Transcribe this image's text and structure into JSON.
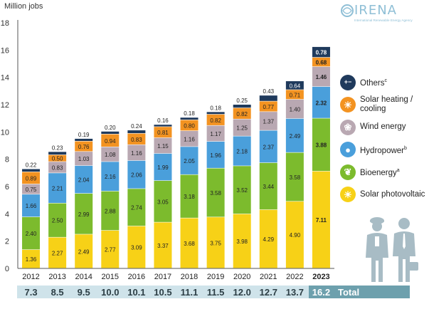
{
  "logo": {
    "word": "IRENA",
    "sub": "International Renewable Energy Agency"
  },
  "colors": {
    "solar_pv": "#f7d117",
    "bioenergy": "#7cbb2d",
    "hydropower": "#4a9fdb",
    "wind": "#b9a8b2",
    "solar_heating": "#f39321",
    "others": "#1f3a5c",
    "totals_bg": "#cfe3ea",
    "totals_hl": "#6da0ad"
  },
  "chart_data": {
    "type": "bar",
    "stacked": true,
    "ylabel": "Million jobs",
    "ylim": [
      0,
      18
    ],
    "yticks": [
      "0",
      "2",
      "4",
      "6",
      "8",
      "10",
      "12",
      "14",
      "16",
      "18"
    ],
    "grid": false,
    "legend_position": "right",
    "categories": [
      "2012",
      "2013",
      "2014",
      "2015",
      "2016",
      "2017",
      "2018",
      "2019",
      "2020",
      "2021",
      "2022",
      "2023"
    ],
    "series": [
      {
        "key": "solar_pv",
        "name": "Solar photovoltaic",
        "values": [
          1.36,
          2.27,
          2.49,
          2.77,
          3.09,
          3.37,
          3.68,
          3.75,
          3.98,
          4.29,
          4.9,
          7.11
        ],
        "labels": [
          "1.36",
          "2.27",
          "2.49",
          "2.77",
          "3.09",
          "3.37",
          "3.68",
          "3.75",
          "3.98",
          "4.29",
          "4.90",
          "7.11"
        ]
      },
      {
        "key": "bioenergy",
        "name": "Bioenergy",
        "sup": "a",
        "values": [
          2.4,
          2.5,
          2.99,
          2.88,
          2.74,
          3.05,
          3.18,
          3.58,
          3.52,
          3.44,
          3.58,
          3.88
        ],
        "labels": [
          "2.40",
          "2.50",
          "2.99",
          "2.88",
          "2.74",
          "3.05",
          "3.18",
          "3.58",
          "3.52",
          "3.44",
          "3.58",
          "3.88"
        ]
      },
      {
        "key": "hydropower",
        "name": "Hydropower",
        "sup": "b",
        "values": [
          1.66,
          2.21,
          2.04,
          2.16,
          2.06,
          1.99,
          2.05,
          1.96,
          2.18,
          2.37,
          2.49,
          2.32
        ],
        "labels": [
          "1.66",
          "2.21",
          "2.04",
          "2.16",
          "2.06",
          "1.99",
          "2.05",
          "1.96",
          "2.18",
          "2.37",
          "2.49",
          "2.32"
        ]
      },
      {
        "key": "wind",
        "name": "Wind energy",
        "values": [
          0.75,
          0.83,
          1.03,
          1.08,
          1.16,
          1.15,
          1.16,
          1.17,
          1.25,
          1.37,
          1.4,
          1.46
        ],
        "labels": [
          "0.75",
          "0.83",
          "1.03",
          "1.08",
          "1.16",
          "1.15",
          "1.16",
          "1.17",
          "1.25",
          "1.37",
          "1.40",
          "1.46"
        ]
      },
      {
        "key": "solar_heating",
        "name": "Solar heating / cooling",
        "values": [
          0.89,
          0.5,
          0.76,
          0.94,
          0.83,
          0.81,
          0.8,
          0.82,
          0.82,
          0.77,
          0.71,
          0.68
        ],
        "labels": [
          "0.89",
          "0.50",
          "0.76",
          "0.94",
          "0.83",
          "0.81",
          "0.80",
          "0.82",
          "0.82",
          "0.77",
          "0.71",
          "0.68"
        ]
      },
      {
        "key": "others",
        "name": "Others",
        "sup": "c",
        "values": [
          0.22,
          0.23,
          0.19,
          0.2,
          0.24,
          0.16,
          0.18,
          0.18,
          0.25,
          0.43,
          0.64,
          0.78
        ],
        "labels": [
          "0.22",
          "0.23",
          "0.19",
          "0.20",
          "0.24",
          "0.16",
          "0.18",
          "0.18",
          "0.25",
          "0.43",
          "0.64",
          "0.78"
        ],
        "label_outside": [
          true,
          true,
          true,
          true,
          true,
          true,
          true,
          true,
          true,
          true,
          false,
          false
        ]
      }
    ],
    "totals": [
      "7.3",
      "8.5",
      "9.5",
      "10.0",
      "10.1",
      "10.5",
      "11.1",
      "11.5",
      "12.0",
      "12.7",
      "13.7",
      "16.2"
    ],
    "totals_label": "Total"
  },
  "legend": [
    {
      "key": "others",
      "label": "Others",
      "sup": "c",
      "icon": "plus-minus-icon"
    },
    {
      "key": "solar_heating",
      "label": "Solar heating / cooling",
      "icon": "sun-icon"
    },
    {
      "key": "wind",
      "label": "Wind energy",
      "icon": "wind-turbine-icon"
    },
    {
      "key": "hydropower",
      "label": "Hydropower",
      "sup": "b",
      "icon": "water-drop-icon"
    },
    {
      "key": "bioenergy",
      "label": "Bioenergy",
      "sup": "a",
      "icon": "leaf-icon"
    },
    {
      "key": "solar_pv",
      "label": "Solar photovoltaic",
      "icon": "sun-icon"
    }
  ]
}
